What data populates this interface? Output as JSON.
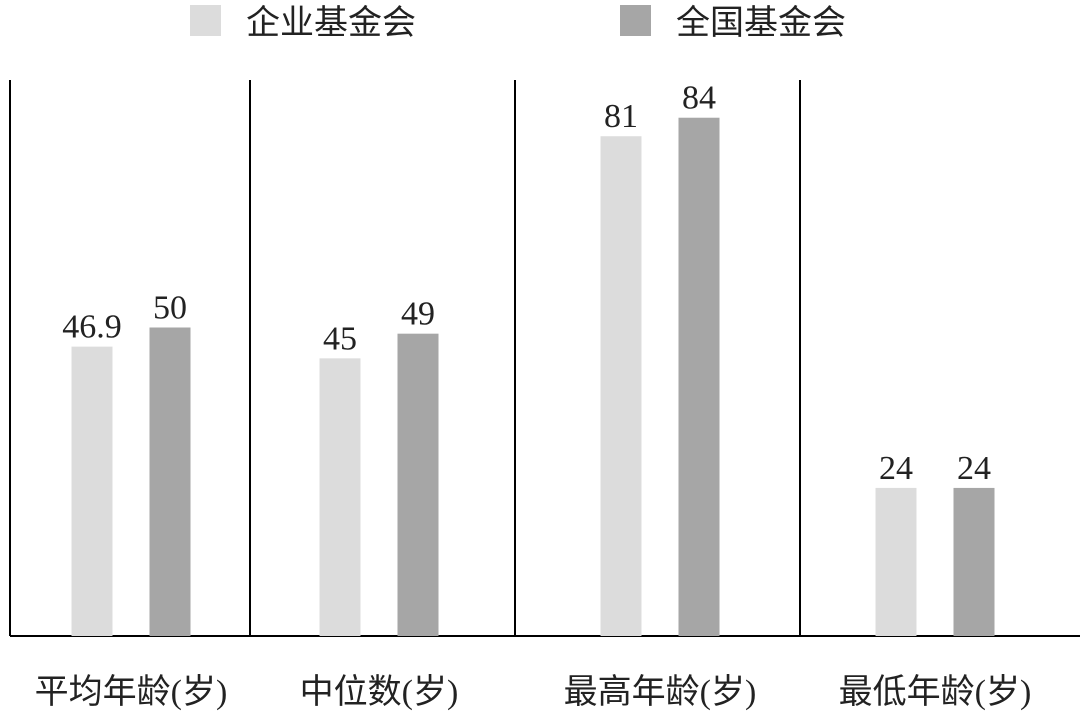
{
  "chart_data": {
    "type": "bar",
    "categories": [
      "平均年龄(岁)",
      "中位数(岁)",
      "最高年龄(岁)",
      "最低年龄(岁)"
    ],
    "series": [
      {
        "name": "企业基金会",
        "color": "#dcdcdc",
        "values": [
          46.9,
          45,
          81,
          24
        ]
      },
      {
        "name": "全国基金会",
        "color": "#a6a6a6",
        "values": [
          50,
          49,
          84,
          24
        ]
      }
    ]
  }
}
